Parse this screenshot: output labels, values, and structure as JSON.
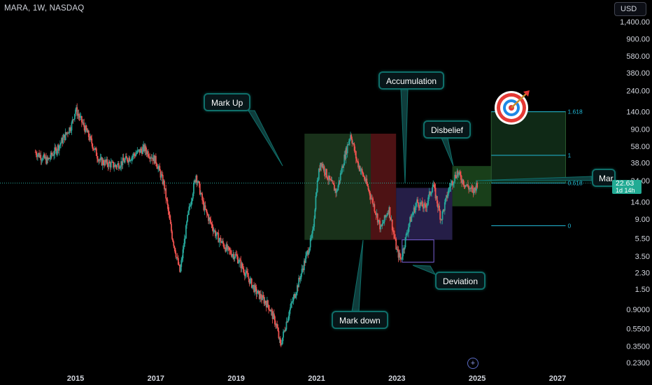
{
  "header": {
    "symbol": "MARA, 1W, NASDAQ",
    "currency_button": "USD"
  },
  "price_tag": {
    "price": "22.63",
    "countdown": "1d 14h"
  },
  "target_icon": "bullseye-target-icon",
  "goto_button_icon": "plus-circle-icon",
  "colors": {
    "background": "#000000",
    "candle_up": "#26a69a",
    "candle_down": "#ef5350",
    "current_price_line": "#26a69a",
    "fib_line": "#22b8d6",
    "zone_markup": "#1d3a1f",
    "zone_markdown": "#5a1518",
    "zone_accumulation": "#2b2354",
    "zone_disbelief": "#1d4a1f",
    "zone_target": "#12301a",
    "callout_border": "#0f6f6a"
  },
  "callouts": {
    "mark_up": "Mark Up",
    "accumulation": "Accumulation",
    "disbelief": "Disbelief",
    "mark_down": "Mark down",
    "deviation": "Deviation",
    "markup_right": "Mar"
  },
  "chart_data": {
    "type": "candlestick",
    "ticker": "MARA",
    "timeframe": "1W",
    "exchange": "NASDAQ",
    "currency": "USD",
    "y_scale": "log",
    "ylim": [
      0.2,
      2000
    ],
    "xlim": [
      2014.0,
      2028.0
    ],
    "y_ticks": [
      "1,400.00",
      "900.00",
      "580.00",
      "380.00",
      "240.00",
      "140.00",
      "90.00",
      "58.00",
      "38.00",
      "24.00",
      "14.00",
      "9.00",
      "5.50",
      "3.50",
      "2.30",
      "1.50",
      "0.9000",
      "0.5500",
      "0.3500",
      "0.2300"
    ],
    "x_ticks": [
      "2015",
      "2017",
      "2019",
      "2021",
      "2023",
      "2025",
      "2027"
    ],
    "current_price": 22.63,
    "price_path": [
      [
        2014.0,
        50
      ],
      [
        2014.3,
        40
      ],
      [
        2014.6,
        60
      ],
      [
        2014.9,
        100
      ],
      [
        2015.0,
        150
      ],
      [
        2015.3,
        80
      ],
      [
        2015.6,
        40
      ],
      [
        2016.0,
        35
      ],
      [
        2016.4,
        45
      ],
      [
        2016.7,
        55
      ],
      [
        2017.0,
        40
      ],
      [
        2017.2,
        22
      ],
      [
        2017.4,
        6
      ],
      [
        2017.6,
        2.3
      ],
      [
        2017.8,
        10
      ],
      [
        2018.0,
        28
      ],
      [
        2018.2,
        12
      ],
      [
        2018.5,
        6
      ],
      [
        2018.8,
        4
      ],
      [
        2019.0,
        3.5
      ],
      [
        2019.2,
        2.4
      ],
      [
        2019.5,
        1.4
      ],
      [
        2019.8,
        1.0
      ],
      [
        2020.0,
        0.6
      ],
      [
        2020.1,
        0.35
      ],
      [
        2020.3,
        0.8
      ],
      [
        2020.5,
        1.5
      ],
      [
        2020.7,
        3
      ],
      [
        2020.9,
        6
      ],
      [
        2021.0,
        20
      ],
      [
        2021.1,
        40
      ],
      [
        2021.3,
        25
      ],
      [
        2021.5,
        18
      ],
      [
        2021.7,
        45
      ],
      [
        2021.85,
        80
      ],
      [
        2022.0,
        40
      ],
      [
        2022.2,
        25
      ],
      [
        2022.4,
        14
      ],
      [
        2022.6,
        7
      ],
      [
        2022.8,
        12
      ],
      [
        2023.0,
        4
      ],
      [
        2023.1,
        3.2
      ],
      [
        2023.3,
        8
      ],
      [
        2023.5,
        14
      ],
      [
        2023.7,
        12
      ],
      [
        2023.9,
        22
      ],
      [
        2024.1,
        9
      ],
      [
        2024.3,
        20
      ],
      [
        2024.5,
        30
      ],
      [
        2024.7,
        22
      ],
      [
        2024.9,
        18
      ],
      [
        2025.0,
        22.63
      ]
    ],
    "zones": [
      {
        "name": "Mark Up",
        "from": 2020.7,
        "to": 2022.35,
        "low": 5.3,
        "high": 80
      },
      {
        "name": "Mark down",
        "from": 2022.35,
        "to": 2022.98,
        "low": 5.3,
        "high": 80
      },
      {
        "name": "Accumulation",
        "from": 2022.98,
        "to": 2024.38,
        "low": 5.3,
        "high": 20
      },
      {
        "name": "Deviation",
        "from": 2023.13,
        "to": 2023.92,
        "low": 3.0,
        "high": 5.3
      },
      {
        "name": "Disbelief",
        "from": 2024.38,
        "to": 2025.35,
        "low": 12.5,
        "high": 35
      },
      {
        "name": "Target",
        "from": 2025.35,
        "to": 2027.2,
        "low": 22.63,
        "high": 140
      }
    ],
    "fib_levels": [
      {
        "label": "1.618",
        "value": 140
      },
      {
        "label": "1",
        "value": 46
      },
      {
        "label": "0.618",
        "value": 22.63
      },
      {
        "label": "0",
        "value": 7.6
      }
    ]
  }
}
